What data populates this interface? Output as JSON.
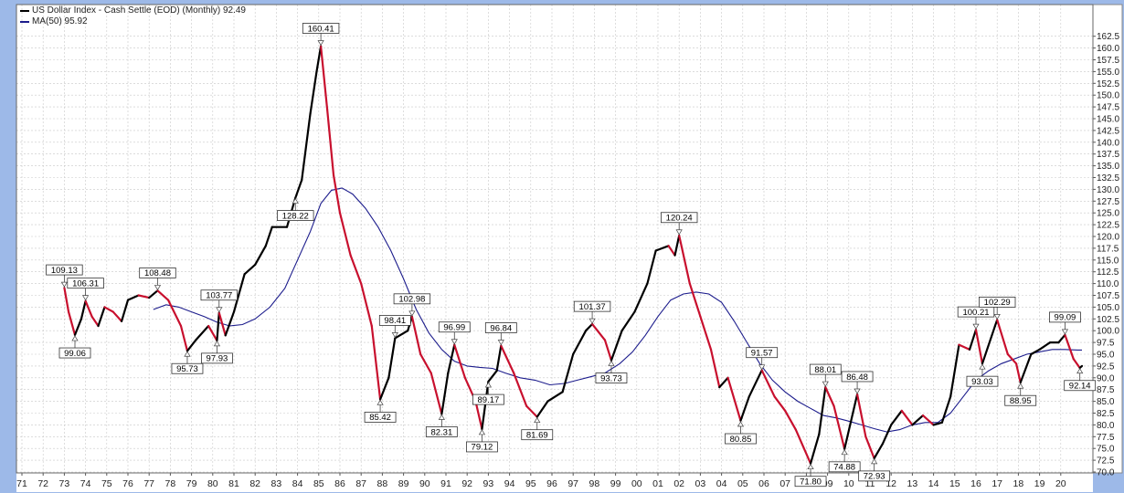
{
  "legend": {
    "price_label": "US Dollar Index - Cash Settle (EOD) (Monthly) 92.49",
    "ma_label": "MA(50) 95.92"
  },
  "colors": {
    "up": "#000000",
    "down": "#c8102e",
    "ma": "#1c1c8c",
    "grid": "#c8c8c8",
    "background": "#ffffff",
    "frame": "#9db9e8"
  },
  "chart_data": {
    "type": "line",
    "title": "US Dollar Index - Cash Settle (EOD) (Monthly)",
    "x_ticks": [
      "71",
      "72",
      "73",
      "74",
      "75",
      "76",
      "77",
      "78",
      "79",
      "80",
      "81",
      "82",
      "83",
      "84",
      "85",
      "86",
      "87",
      "88",
      "89",
      "90",
      "91",
      "92",
      "93",
      "94",
      "95",
      "96",
      "97",
      "98",
      "99",
      "00",
      "01",
      "02",
      "03",
      "04",
      "05",
      "06",
      "07",
      "08",
      "09",
      "10",
      "11",
      "12",
      "13",
      "14",
      "15",
      "16",
      "17",
      "18",
      "19",
      "20"
    ],
    "y_ticks": [
      "70.0",
      "72.5",
      "75.0",
      "77.5",
      "80.0",
      "82.5",
      "85.0",
      "87.5",
      "90.0",
      "92.5",
      "95.0",
      "97.5",
      "100.0",
      "102.5",
      "105.0",
      "107.5",
      "110.0",
      "112.5",
      "115.0",
      "117.5",
      "120.0",
      "122.5",
      "125.0",
      "127.5",
      "130.0",
      "132.5",
      "135.0",
      "137.5",
      "140.0",
      "142.5",
      "145.0",
      "147.5",
      "150.0",
      "152.5",
      "155.0",
      "157.5",
      "160.0",
      "162.5"
    ],
    "ylim": [
      70,
      163
    ],
    "grid": true,
    "series": [
      {
        "name": "US Dollar Index",
        "points": [
          [
            1973.0,
            109.1
          ],
          [
            1973.2,
            104.0
          ],
          [
            1973.5,
            99.1
          ],
          [
            1973.8,
            102.5
          ],
          [
            1974.0,
            106.3
          ],
          [
            1974.3,
            103.0
          ],
          [
            1974.6,
            101.0
          ],
          [
            1974.9,
            105.0
          ],
          [
            1975.3,
            104.0
          ],
          [
            1975.7,
            102.0
          ],
          [
            1976.0,
            106.5
          ],
          [
            1976.5,
            107.5
          ],
          [
            1977.0,
            107.0
          ],
          [
            1977.4,
            108.5
          ],
          [
            1977.9,
            106.5
          ],
          [
            1978.5,
            101.0
          ],
          [
            1978.8,
            95.7
          ],
          [
            1979.2,
            98.0
          ],
          [
            1979.8,
            101.0
          ],
          [
            1980.2,
            97.9
          ],
          [
            1980.3,
            103.8
          ],
          [
            1980.6,
            99.0
          ],
          [
            1981.0,
            104.0
          ],
          [
            1981.5,
            112.0
          ],
          [
            1982.0,
            114.0
          ],
          [
            1982.5,
            118.0
          ],
          [
            1982.8,
            122.0
          ],
          [
            1983.5,
            122.0
          ],
          [
            1983.9,
            128.2
          ],
          [
            1984.2,
            132.0
          ],
          [
            1984.6,
            146.0
          ],
          [
            1984.9,
            155.0
          ],
          [
            1985.1,
            160.4
          ],
          [
            1985.4,
            147.0
          ],
          [
            1985.7,
            133.0
          ],
          [
            1986.0,
            125.0
          ],
          [
            1986.5,
            116.0
          ],
          [
            1987.0,
            110.0
          ],
          [
            1987.5,
            101.0
          ],
          [
            1987.9,
            85.4
          ],
          [
            1988.3,
            90.0
          ],
          [
            1988.6,
            98.4
          ],
          [
            1989.2,
            100.0
          ],
          [
            1989.4,
            103.0
          ],
          [
            1989.8,
            95.0
          ],
          [
            1990.3,
            91.0
          ],
          [
            1990.8,
            82.3
          ],
          [
            1991.1,
            91.0
          ],
          [
            1991.4,
            97.0
          ],
          [
            1991.9,
            90.0
          ],
          [
            1992.4,
            85.0
          ],
          [
            1992.7,
            79.1
          ],
          [
            1993.0,
            89.2
          ],
          [
            1993.4,
            91.5
          ],
          [
            1993.6,
            96.8
          ],
          [
            1994.2,
            91.0
          ],
          [
            1994.8,
            84.0
          ],
          [
            1995.3,
            81.7
          ],
          [
            1995.8,
            85.0
          ],
          [
            1996.5,
            87.0
          ],
          [
            1997.0,
            95.0
          ],
          [
            1997.6,
            100.0
          ],
          [
            1997.9,
            101.4
          ],
          [
            1998.5,
            98.0
          ],
          [
            1998.8,
            93.7
          ],
          [
            1999.3,
            100.0
          ],
          [
            1999.9,
            104.0
          ],
          [
            2000.5,
            110.0
          ],
          [
            2000.9,
            117.0
          ],
          [
            2001.5,
            118.0
          ],
          [
            2001.8,
            116.0
          ],
          [
            2002.0,
            120.2
          ],
          [
            2002.5,
            110.0
          ],
          [
            2003.0,
            103.0
          ],
          [
            2003.5,
            96.0
          ],
          [
            2003.9,
            88.0
          ],
          [
            2004.3,
            90.0
          ],
          [
            2004.9,
            80.9
          ],
          [
            2005.3,
            86.0
          ],
          [
            2005.9,
            91.6
          ],
          [
            2006.5,
            86.0
          ],
          [
            2007.0,
            83.0
          ],
          [
            2007.5,
            79.0
          ],
          [
            2008.2,
            71.8
          ],
          [
            2008.6,
            78.0
          ],
          [
            2008.9,
            88.0
          ],
          [
            2009.3,
            84.0
          ],
          [
            2009.8,
            74.9
          ],
          [
            2010.4,
            86.5
          ],
          [
            2010.8,
            77.5
          ],
          [
            2011.2,
            72.9
          ],
          [
            2011.6,
            76.0
          ],
          [
            2012.0,
            80.0
          ],
          [
            2012.5,
            83.0
          ],
          [
            2013.0,
            80.0
          ],
          [
            2013.5,
            82.0
          ],
          [
            2014.0,
            80.0
          ],
          [
            2014.4,
            80.5
          ],
          [
            2014.8,
            86.0
          ],
          [
            2015.2,
            97.0
          ],
          [
            2015.7,
            96.0
          ],
          [
            2016.0,
            100.2
          ],
          [
            2016.3,
            93.0
          ],
          [
            2016.9,
            101.0
          ],
          [
            2017.0,
            102.3
          ],
          [
            2017.5,
            95.0
          ],
          [
            2017.9,
            93.0
          ],
          [
            2018.1,
            89.0
          ],
          [
            2018.6,
            95.0
          ],
          [
            2019.0,
            96.0
          ],
          [
            2019.5,
            97.5
          ],
          [
            2019.9,
            97.5
          ],
          [
            2020.2,
            99.1
          ],
          [
            2020.6,
            94.0
          ],
          [
            2020.9,
            92.1
          ],
          [
            2021.0,
            92.5
          ]
        ]
      },
      {
        "name": "MA(50)",
        "points": [
          [
            1977.2,
            104.5
          ],
          [
            1977.8,
            105.5
          ],
          [
            1978.4,
            105.0
          ],
          [
            1979.0,
            104.0
          ],
          [
            1979.6,
            103.0
          ],
          [
            1980.2,
            101.8
          ],
          [
            1980.8,
            101.0
          ],
          [
            1981.4,
            101.3
          ],
          [
            1982.0,
            102.5
          ],
          [
            1982.7,
            105.0
          ],
          [
            1983.4,
            109.0
          ],
          [
            1984.0,
            115.0
          ],
          [
            1984.6,
            121.0
          ],
          [
            1985.1,
            127.0
          ],
          [
            1985.6,
            129.8
          ],
          [
            1986.1,
            130.3
          ],
          [
            1986.6,
            129.0
          ],
          [
            1987.2,
            126.0
          ],
          [
            1987.8,
            122.0
          ],
          [
            1988.4,
            117.0
          ],
          [
            1989.0,
            111.0
          ],
          [
            1989.6,
            104.5
          ],
          [
            1990.2,
            99.5
          ],
          [
            1990.8,
            96.0
          ],
          [
            1991.4,
            93.5
          ],
          [
            1992.0,
            92.5
          ],
          [
            1992.6,
            92.2
          ],
          [
            1993.2,
            92.0
          ],
          [
            1993.8,
            91.0
          ],
          [
            1994.5,
            90.0
          ],
          [
            1995.2,
            89.5
          ],
          [
            1995.9,
            88.5
          ],
          [
            1996.6,
            88.8
          ],
          [
            1997.2,
            89.5
          ],
          [
            1997.8,
            90.2
          ],
          [
            1998.5,
            91.0
          ],
          [
            1999.2,
            93.0
          ],
          [
            1999.8,
            95.5
          ],
          [
            2000.4,
            99.0
          ],
          [
            2001.0,
            103.0
          ],
          [
            2001.6,
            106.5
          ],
          [
            2002.2,
            107.8
          ],
          [
            2002.8,
            108.2
          ],
          [
            2003.4,
            107.8
          ],
          [
            2004.0,
            106.0
          ],
          [
            2004.6,
            102.0
          ],
          [
            2005.2,
            97.5
          ],
          [
            2005.8,
            93.0
          ],
          [
            2006.4,
            89.5
          ],
          [
            2007.0,
            87.0
          ],
          [
            2007.6,
            85.0
          ],
          [
            2008.2,
            83.5
          ],
          [
            2008.8,
            82.0
          ],
          [
            2009.4,
            81.5
          ],
          [
            2010.0,
            80.8
          ],
          [
            2010.6,
            80.0
          ],
          [
            2011.2,
            79.2
          ],
          [
            2011.8,
            78.5
          ],
          [
            2012.4,
            79.0
          ],
          [
            2013.0,
            80.0
          ],
          [
            2013.6,
            80.5
          ],
          [
            2014.2,
            80.5
          ],
          [
            2014.8,
            82.5
          ],
          [
            2015.4,
            86.0
          ],
          [
            2016.0,
            89.5
          ],
          [
            2016.6,
            91.5
          ],
          [
            2017.2,
            93.0
          ],
          [
            2017.8,
            94.0
          ],
          [
            2018.4,
            95.0
          ],
          [
            2019.0,
            95.5
          ],
          [
            2019.6,
            96.0
          ],
          [
            2020.2,
            96.0
          ],
          [
            2020.8,
            95.9
          ],
          [
            2021.0,
            95.9
          ]
        ]
      }
    ],
    "annotations": [
      {
        "x": 1973.0,
        "y": 109.13,
        "text": "109.13",
        "pos": "above"
      },
      {
        "x": 1973.5,
        "y": 99.06,
        "text": "99.06",
        "pos": "below"
      },
      {
        "x": 1974.0,
        "y": 106.31,
        "text": "106.31",
        "pos": "above"
      },
      {
        "x": 1977.4,
        "y": 108.48,
        "text": "108.48",
        "pos": "above"
      },
      {
        "x": 1978.8,
        "y": 95.73,
        "text": "95.73",
        "pos": "below"
      },
      {
        "x": 1980.2,
        "y": 97.93,
        "text": "97.93",
        "pos": "below"
      },
      {
        "x": 1980.3,
        "y": 103.77,
        "text": "103.77",
        "pos": "above"
      },
      {
        "x": 1983.9,
        "y": 128.22,
        "text": "128.22",
        "pos": "below"
      },
      {
        "x": 1985.1,
        "y": 160.41,
        "text": "160.41",
        "pos": "above"
      },
      {
        "x": 1987.9,
        "y": 85.42,
        "text": "85.42",
        "pos": "below"
      },
      {
        "x": 1988.6,
        "y": 98.41,
        "text": "98.41",
        "pos": "above"
      },
      {
        "x": 1989.4,
        "y": 102.98,
        "text": "102.98",
        "pos": "above"
      },
      {
        "x": 1990.8,
        "y": 82.31,
        "text": "82.31",
        "pos": "below"
      },
      {
        "x": 1991.4,
        "y": 96.99,
        "text": "96.99",
        "pos": "above"
      },
      {
        "x": 1992.7,
        "y": 79.12,
        "text": "79.12",
        "pos": "below"
      },
      {
        "x": 1993.0,
        "y": 89.17,
        "text": "89.17",
        "pos": "below"
      },
      {
        "x": 1993.6,
        "y": 96.84,
        "text": "96.84",
        "pos": "above"
      },
      {
        "x": 1995.3,
        "y": 81.69,
        "text": "81.69",
        "pos": "below"
      },
      {
        "x": 1997.9,
        "y": 101.37,
        "text": "101.37",
        "pos": "above"
      },
      {
        "x": 1998.8,
        "y": 93.73,
        "text": "93.73",
        "pos": "below"
      },
      {
        "x": 2002.0,
        "y": 120.24,
        "text": "120.24",
        "pos": "above"
      },
      {
        "x": 2004.9,
        "y": 80.85,
        "text": "80.85",
        "pos": "below"
      },
      {
        "x": 2005.9,
        "y": 91.57,
        "text": "91.57",
        "pos": "above"
      },
      {
        "x": 2008.2,
        "y": 71.8,
        "text": "71.80",
        "pos": "below"
      },
      {
        "x": 2008.9,
        "y": 88.01,
        "text": "88.01",
        "pos": "above"
      },
      {
        "x": 2009.8,
        "y": 74.88,
        "text": "74.88",
        "pos": "below"
      },
      {
        "x": 2010.4,
        "y": 86.48,
        "text": "86.48",
        "pos": "above"
      },
      {
        "x": 2011.2,
        "y": 72.93,
        "text": "72.93",
        "pos": "below"
      },
      {
        "x": 2016.0,
        "y": 100.21,
        "text": "100.21",
        "pos": "above"
      },
      {
        "x": 2016.3,
        "y": 93.03,
        "text": "93.03",
        "pos": "below"
      },
      {
        "x": 2017.0,
        "y": 102.29,
        "text": "102.29",
        "pos": "above"
      },
      {
        "x": 2018.1,
        "y": 88.95,
        "text": "88.95",
        "pos": "below"
      },
      {
        "x": 2020.2,
        "y": 99.09,
        "text": "99.09",
        "pos": "above"
      },
      {
        "x": 2020.9,
        "y": 92.14,
        "text": "92.14",
        "pos": "below"
      }
    ]
  }
}
